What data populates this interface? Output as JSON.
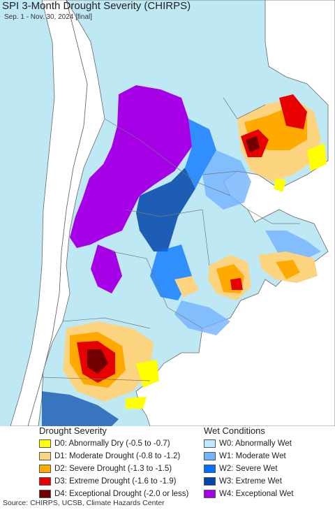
{
  "header": {
    "title": "SPI 3-Month Drought Severity (CHIRPS)",
    "subtitle": "Sep. 1 - Nov. 30, 2024 [final]"
  },
  "legend": {
    "drought_title": "Drought Severity",
    "wet_title": "Wet Conditions",
    "drought_items": [
      {
        "label": "D0: Abnormally Dry (-0.5 to -0.7)",
        "color": "#ffff00"
      },
      {
        "label": "D1: Moderate Drought (-0.8 to -1.2)",
        "color": "#fcd37f"
      },
      {
        "label": "D2: Severe Drought (-1.3 to -1.5)",
        "color": "#ffaa00"
      },
      {
        "label": "D3: Extreme Drought (-1.6 to -1.9)",
        "color": "#e60000"
      },
      {
        "label": "D4: Exceptional Drought (-2.0 or less)",
        "color": "#730000"
      }
    ],
    "wet_items": [
      {
        "label": "W0: Abnormally Wet",
        "color": "#bee8ff"
      },
      {
        "label": "W1: Moderate Wet",
        "color": "#73b2ff"
      },
      {
        "label": "W2: Severe Wet",
        "color": "#0070ff"
      },
      {
        "label": "W3: Extreme Wet",
        "color": "#0045a8"
      },
      {
        "label": "W4: Exceptional Wet",
        "color": "#a500e6"
      }
    ]
  },
  "footer": {
    "source": "Source: CHIRPS, UCSB, Climate Hazards Center"
  }
}
